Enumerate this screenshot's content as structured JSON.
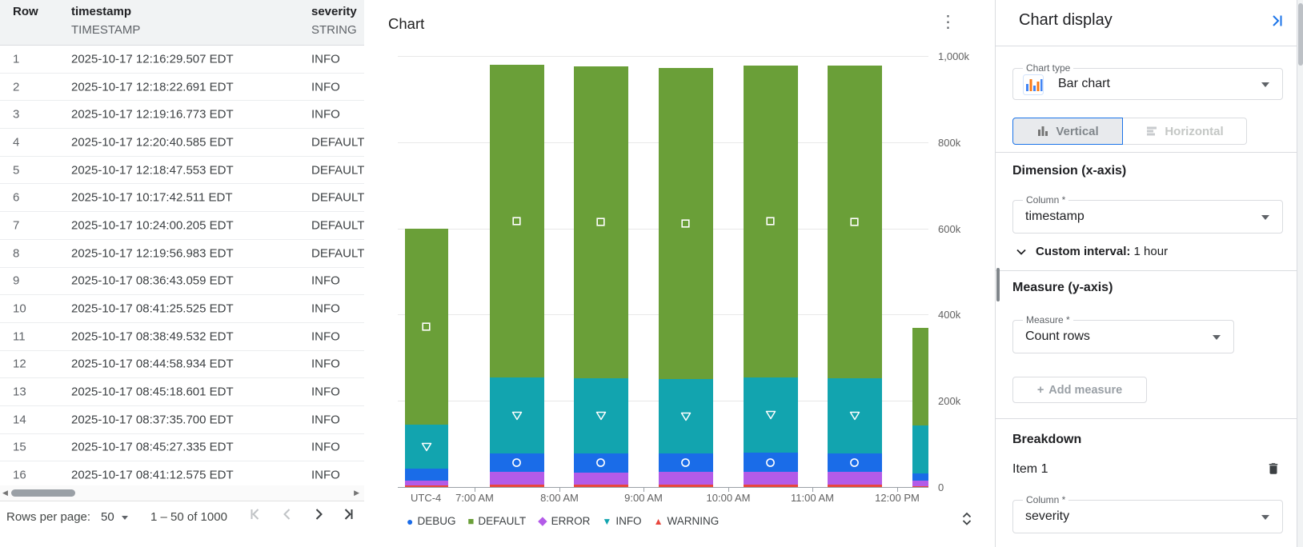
{
  "table": {
    "columns": [
      {
        "name": "Row",
        "type": ""
      },
      {
        "name": "timestamp",
        "type": "TIMESTAMP"
      },
      {
        "name": "severity",
        "type": "STRING"
      }
    ],
    "rows": [
      {
        "row": "1",
        "timestamp": "2025-10-17 12:16:29.507 EDT",
        "severity": "INFO"
      },
      {
        "row": "2",
        "timestamp": "2025-10-17 12:18:22.691 EDT",
        "severity": "INFO"
      },
      {
        "row": "3",
        "timestamp": "2025-10-17 12:19:16.773 EDT",
        "severity": "INFO"
      },
      {
        "row": "4",
        "timestamp": "2025-10-17 12:20:40.585 EDT",
        "severity": "DEFAULT"
      },
      {
        "row": "5",
        "timestamp": "2025-10-17 12:18:47.553 EDT",
        "severity": "DEFAULT"
      },
      {
        "row": "6",
        "timestamp": "2025-10-17 10:17:42.511 EDT",
        "severity": "DEFAULT"
      },
      {
        "row": "7",
        "timestamp": "2025-10-17 10:24:00.205 EDT",
        "severity": "DEFAULT"
      },
      {
        "row": "8",
        "timestamp": "2025-10-17 12:19:56.983 EDT",
        "severity": "DEFAULT"
      },
      {
        "row": "9",
        "timestamp": "2025-10-17 08:36:43.059 EDT",
        "severity": "INFO"
      },
      {
        "row": "10",
        "timestamp": "2025-10-17 08:41:25.525 EDT",
        "severity": "INFO"
      },
      {
        "row": "11",
        "timestamp": "2025-10-17 08:38:49.532 EDT",
        "severity": "INFO"
      },
      {
        "row": "12",
        "timestamp": "2025-10-17 08:44:58.934 EDT",
        "severity": "INFO"
      },
      {
        "row": "13",
        "timestamp": "2025-10-17 08:45:18.601 EDT",
        "severity": "INFO"
      },
      {
        "row": "14",
        "timestamp": "2025-10-17 08:37:35.700 EDT",
        "severity": "INFO"
      },
      {
        "row": "15",
        "timestamp": "2025-10-17 08:45:27.335 EDT",
        "severity": "INFO"
      },
      {
        "row": "16",
        "timestamp": "2025-10-17 08:41:12.575 EDT",
        "severity": "INFO"
      }
    ],
    "footer": {
      "rows_per_page_label": "Rows per page:",
      "rows_per_page_value": "50",
      "range_label": "1 – 50 of 1000"
    }
  },
  "chart_data": {
    "type": "bar",
    "stacked": true,
    "title": "Chart",
    "x_axis": {
      "timezone_label": "UTC-4",
      "tick_labels": [
        "7:00 AM",
        "8:00 AM",
        "9:00 AM",
        "10:00 AM",
        "11:00 AM",
        "12:00 PM"
      ],
      "interval": "1 hour"
    },
    "y_axis": {
      "min": 0,
      "max": 1000000,
      "ticks": [
        {
          "label": "1,000k",
          "value": 1000000
        },
        {
          "label": "800k",
          "value": 800000
        },
        {
          "label": "600k",
          "value": 600000
        },
        {
          "label": "400k",
          "value": 400000
        },
        {
          "label": "200k",
          "value": 200000
        },
        {
          "label": "0",
          "value": 0
        }
      ]
    },
    "categories": [
      "6:00 AM",
      "7:00 AM",
      "8:00 AM",
      "9:00 AM",
      "10:00 AM",
      "11:00 AM",
      "12:00 PM"
    ],
    "series": [
      {
        "name": "WARNING",
        "color": "#e8463d",
        "marker": "triangle-up",
        "values": [
          4000,
          5000,
          5000,
          5000,
          5000,
          5000,
          2000
        ]
      },
      {
        "name": "ERROR",
        "color": "#b35be8",
        "marker": "diamond",
        "values": [
          10000,
          30000,
          29000,
          30000,
          31000,
          30000,
          12000
        ]
      },
      {
        "name": "DEBUG",
        "color": "#1a6ce8",
        "marker": "circle",
        "values": [
          28000,
          43000,
          44000,
          42000,
          43000,
          43000,
          18000
        ]
      },
      {
        "name": "INFO",
        "color": "#12a4af",
        "marker": "triangle-down",
        "values": [
          103000,
          177000,
          175000,
          174000,
          176000,
          175000,
          110000
        ]
      },
      {
        "name": "DEFAULT",
        "color": "#6a9f38",
        "marker": "square",
        "values": [
          455000,
          725000,
          723000,
          721000,
          722000,
          724000,
          228000
        ]
      }
    ],
    "legend": {
      "position": "bottom",
      "order": [
        "DEBUG",
        "DEFAULT",
        "ERROR",
        "INFO",
        "WARNING"
      ]
    }
  },
  "panel": {
    "title": "Chart display",
    "chart_type": {
      "label": "Chart type",
      "value": "Bar chart"
    },
    "orientation": {
      "vertical": "Vertical",
      "horizontal": "Horizontal",
      "selected": "Vertical"
    },
    "dimension": {
      "heading": "Dimension (x-axis)",
      "column_label": "Column *",
      "column_value": "timestamp",
      "custom_interval_label": "Custom interval:",
      "custom_interval_value": "1 hour"
    },
    "measure": {
      "heading": "Measure (y-axis)",
      "measure_label": "Measure *",
      "measure_value": "Count rows",
      "add_measure_label": "Add measure"
    },
    "breakdown": {
      "heading": "Breakdown",
      "item_label": "Item 1",
      "column_label": "Column *",
      "column_value": "severity"
    }
  },
  "icons": {
    "kebab_menu": "⋮",
    "plus": "+",
    "scroll_up": "▲",
    "scroll_down": "▼",
    "scroll_left": "◀",
    "scroll_right": "▶",
    "legend_markers": {
      "circle": "●",
      "square": "■",
      "diamond": "◆",
      "triangle-down": "▼",
      "triangle-up": "▲"
    }
  },
  "accent_colors": {
    "google_blue": "#1a73e8",
    "panel_border": "#dadce0",
    "header_bg": "#f1f3f4"
  }
}
